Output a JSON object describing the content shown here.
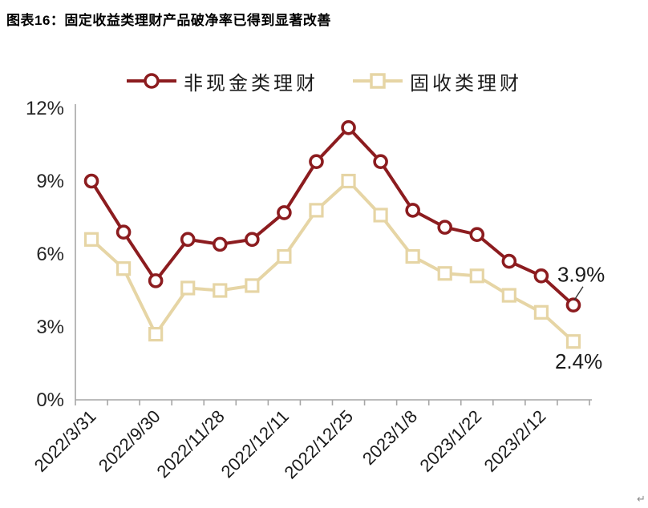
{
  "title": "图表16：固定收益类理财产品破净率已得到显著改善",
  "legend": [
    {
      "label": "非现金类理财",
      "marker": "circle",
      "color": "#8c1c1f"
    },
    {
      "label": "固收类理财",
      "marker": "square",
      "color": "#e6d5a5"
    }
  ],
  "chart_data": {
    "type": "line",
    "title": "图表16：固定收益类理财产品破净率已得到显著改善",
    "x_labels": [
      "2022/3/31",
      "2022/9/30",
      "2022/11/28",
      "2022/12/11",
      "2022/12/25",
      "2023/1/8",
      "2023/1/22",
      "2023/2/12"
    ],
    "x_label_indices": [
      0,
      2,
      4,
      6,
      8,
      10,
      12,
      14
    ],
    "n_points": 16,
    "series": [
      {
        "name": "非现金类理财",
        "color": "#8c1c1f",
        "marker": "circle",
        "values": [
          9.0,
          6.9,
          4.9,
          6.6,
          6.4,
          6.6,
          7.7,
          9.8,
          11.2,
          9.8,
          7.8,
          7.1,
          6.8,
          5.7,
          5.1,
          3.9
        ]
      },
      {
        "name": "固收类理财",
        "color": "#e6d5a5",
        "marker": "square",
        "values": [
          6.6,
          5.4,
          2.7,
          4.6,
          4.5,
          4.7,
          5.9,
          7.8,
          9.0,
          7.6,
          5.9,
          5.2,
          5.1,
          4.3,
          3.6,
          2.4
        ]
      }
    ],
    "ylim": [
      0,
      12
    ],
    "ytick_labels": [
      "0%",
      "3%",
      "6%",
      "9%",
      "12%"
    ],
    "ytick_values": [
      0,
      3,
      6,
      9,
      12
    ],
    "grid": false,
    "legend_position": "top-center",
    "end_labels": [
      {
        "text": "3.9%",
        "series": 0,
        "leader": true
      },
      {
        "text": "2.4%",
        "series": 1,
        "leader": false
      }
    ]
  },
  "annotations": {
    "return_mark": "↵"
  },
  "colors": {
    "axis": "#a6a6a6",
    "tick_text": "#262626",
    "label_text": "#1a1a1a",
    "leader": "#333333"
  }
}
